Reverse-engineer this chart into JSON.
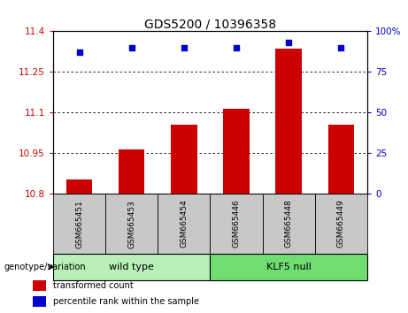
{
  "title": "GDS5200 / 10396358",
  "samples": [
    "GSM665451",
    "GSM665453",
    "GSM665454",
    "GSM665446",
    "GSM665448",
    "GSM665449"
  ],
  "bar_values": [
    10.855,
    10.965,
    11.055,
    11.115,
    11.335,
    11.055
  ],
  "scatter_values": [
    87,
    90,
    90,
    90,
    93,
    90
  ],
  "ylim_left": [
    10.8,
    11.4
  ],
  "ylim_right": [
    0,
    100
  ],
  "yticks_left": [
    10.8,
    10.95,
    11.1,
    11.25,
    11.4
  ],
  "ytick_labels_left": [
    "10.8",
    "10.95",
    "11.1",
    "11.25",
    "11.4"
  ],
  "yticks_right": [
    0,
    25,
    50,
    75,
    100
  ],
  "ytick_labels_right": [
    "0",
    "25",
    "50",
    "75",
    "100%"
  ],
  "bar_color": "#cc0000",
  "scatter_color": "#0000cc",
  "bar_width": 0.5,
  "grid_color": "black",
  "xlabel_color": "#cc0000",
  "ylabel_right_color": "#0000cc",
  "genotype_label": "genotype/variation",
  "legend_items": [
    {
      "label": "transformed count",
      "color": "#cc0000"
    },
    {
      "label": "percentile rank within the sample",
      "color": "#0000cc"
    }
  ],
  "tick_bg": "#c8c8c8",
  "group_box_wild": "#b8f0b8",
  "group_box_klf5": "#70dd70",
  "wild_type_range": [
    0,
    3
  ],
  "klf5_range": [
    3,
    6
  ]
}
